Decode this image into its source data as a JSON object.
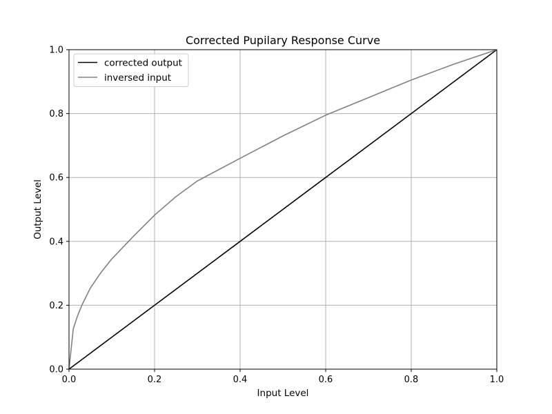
{
  "chart_data": {
    "type": "line",
    "title": "Corrected Pupilary Response Curve",
    "xlabel": "Input Level",
    "ylabel": "Output Level",
    "xlim": [
      0,
      1
    ],
    "ylim": [
      0,
      1
    ],
    "xticks": [
      "0.0",
      "0.2",
      "0.4",
      "0.6",
      "0.8",
      "1.0"
    ],
    "yticks": [
      "0.0",
      "0.2",
      "0.4",
      "0.6",
      "0.8",
      "1.0"
    ],
    "grid": true,
    "legend_position": "top-left",
    "series": [
      {
        "name": "corrected output",
        "color": "#000000",
        "x": [
          0,
          0.2,
          0.4,
          0.6,
          0.8,
          1.0
        ],
        "y": [
          0,
          0.2,
          0.4,
          0.6,
          0.8,
          1.0
        ]
      },
      {
        "name": "inversed input",
        "color": "#808080",
        "x": [
          0,
          0.01,
          0.02,
          0.03,
          0.05,
          0.075,
          0.1,
          0.15,
          0.2,
          0.25,
          0.3,
          0.4,
          0.5,
          0.6,
          0.7,
          0.8,
          0.9,
          1.0
        ],
        "y": [
          0,
          0.126,
          0.167,
          0.2,
          0.254,
          0.303,
          0.345,
          0.415,
          0.482,
          0.54,
          0.589,
          0.66,
          0.73,
          0.795,
          0.85,
          0.905,
          0.955,
          1.0
        ]
      }
    ]
  }
}
